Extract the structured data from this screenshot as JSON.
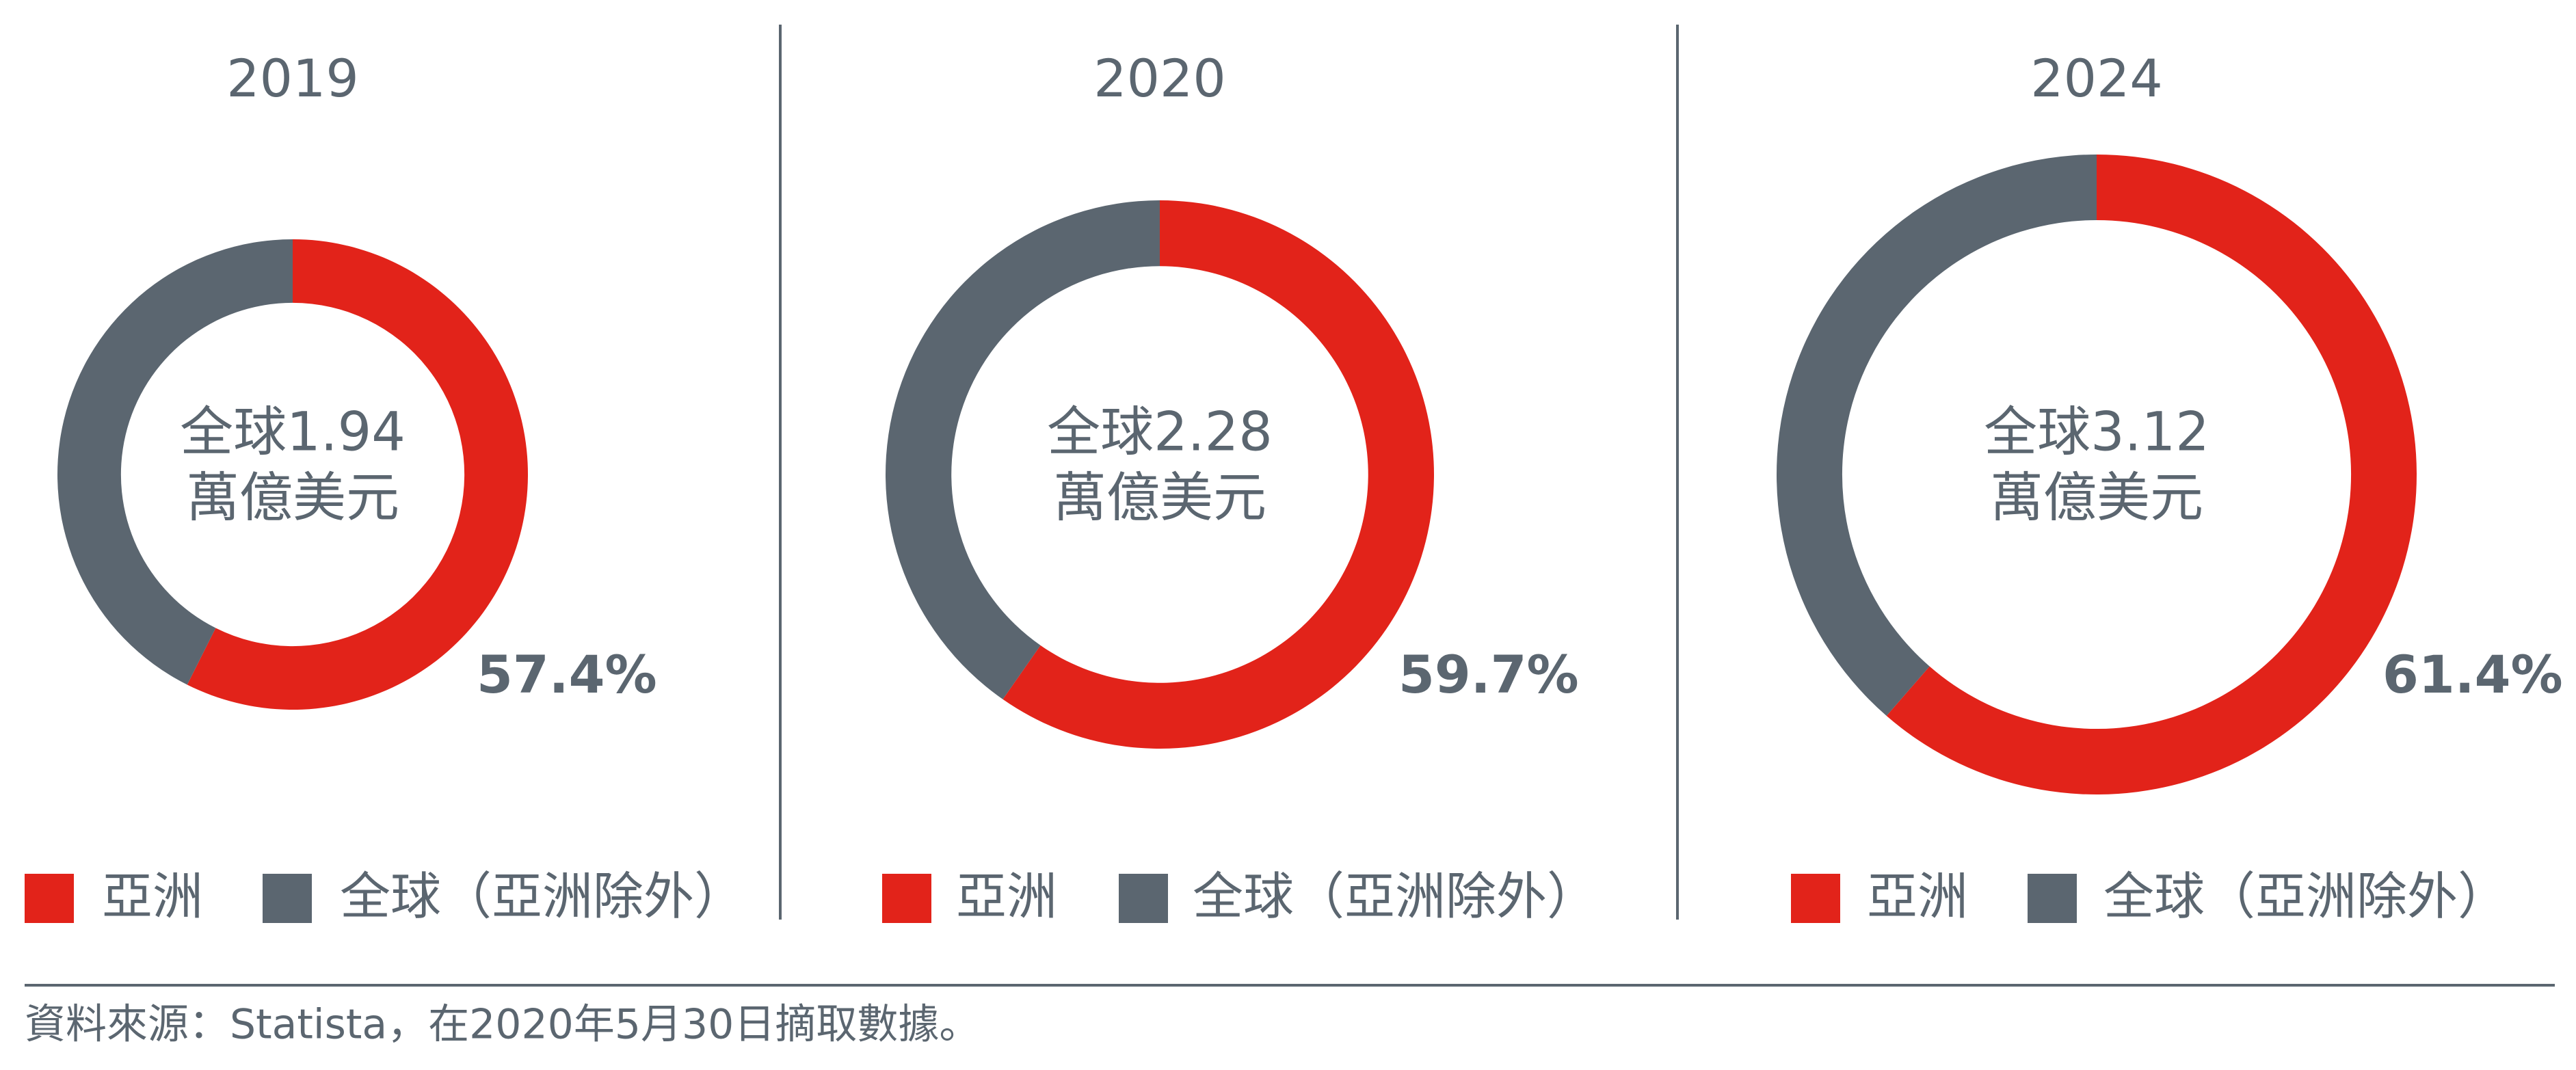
{
  "chart_data": [
    {
      "type": "pie",
      "title": "2019",
      "center_lines": [
        "全球1.94",
        "萬億美元"
      ],
      "categories": [
        "亞洲",
        "全球（亞洲除外）"
      ],
      "values": [
        57.4,
        42.6
      ],
      "value_labels": [
        "57.4%",
        null
      ],
      "colors": [
        "#e2231a",
        "#5b6670"
      ]
    },
    {
      "type": "pie",
      "title": "2020",
      "center_lines": [
        "全球2.28",
        "萬億美元"
      ],
      "categories": [
        "亞洲",
        "全球（亞洲除外）"
      ],
      "values": [
        59.7,
        40.3
      ],
      "value_labels": [
        "59.7%",
        null
      ],
      "colors": [
        "#e2231a",
        "#5b6670"
      ]
    },
    {
      "type": "pie",
      "title": "2024",
      "center_lines": [
        "全球3.12",
        "萬億美元"
      ],
      "categories": [
        "亞洲",
        "全球（亞洲除外）"
      ],
      "values": [
        61.4,
        38.6
      ],
      "value_labels": [
        "61.4%",
        null
      ],
      "colors": [
        "#e2231a",
        "#5b6670"
      ]
    }
  ],
  "source": "資料來源：Statista，在2020年5月30日摘取數據。"
}
